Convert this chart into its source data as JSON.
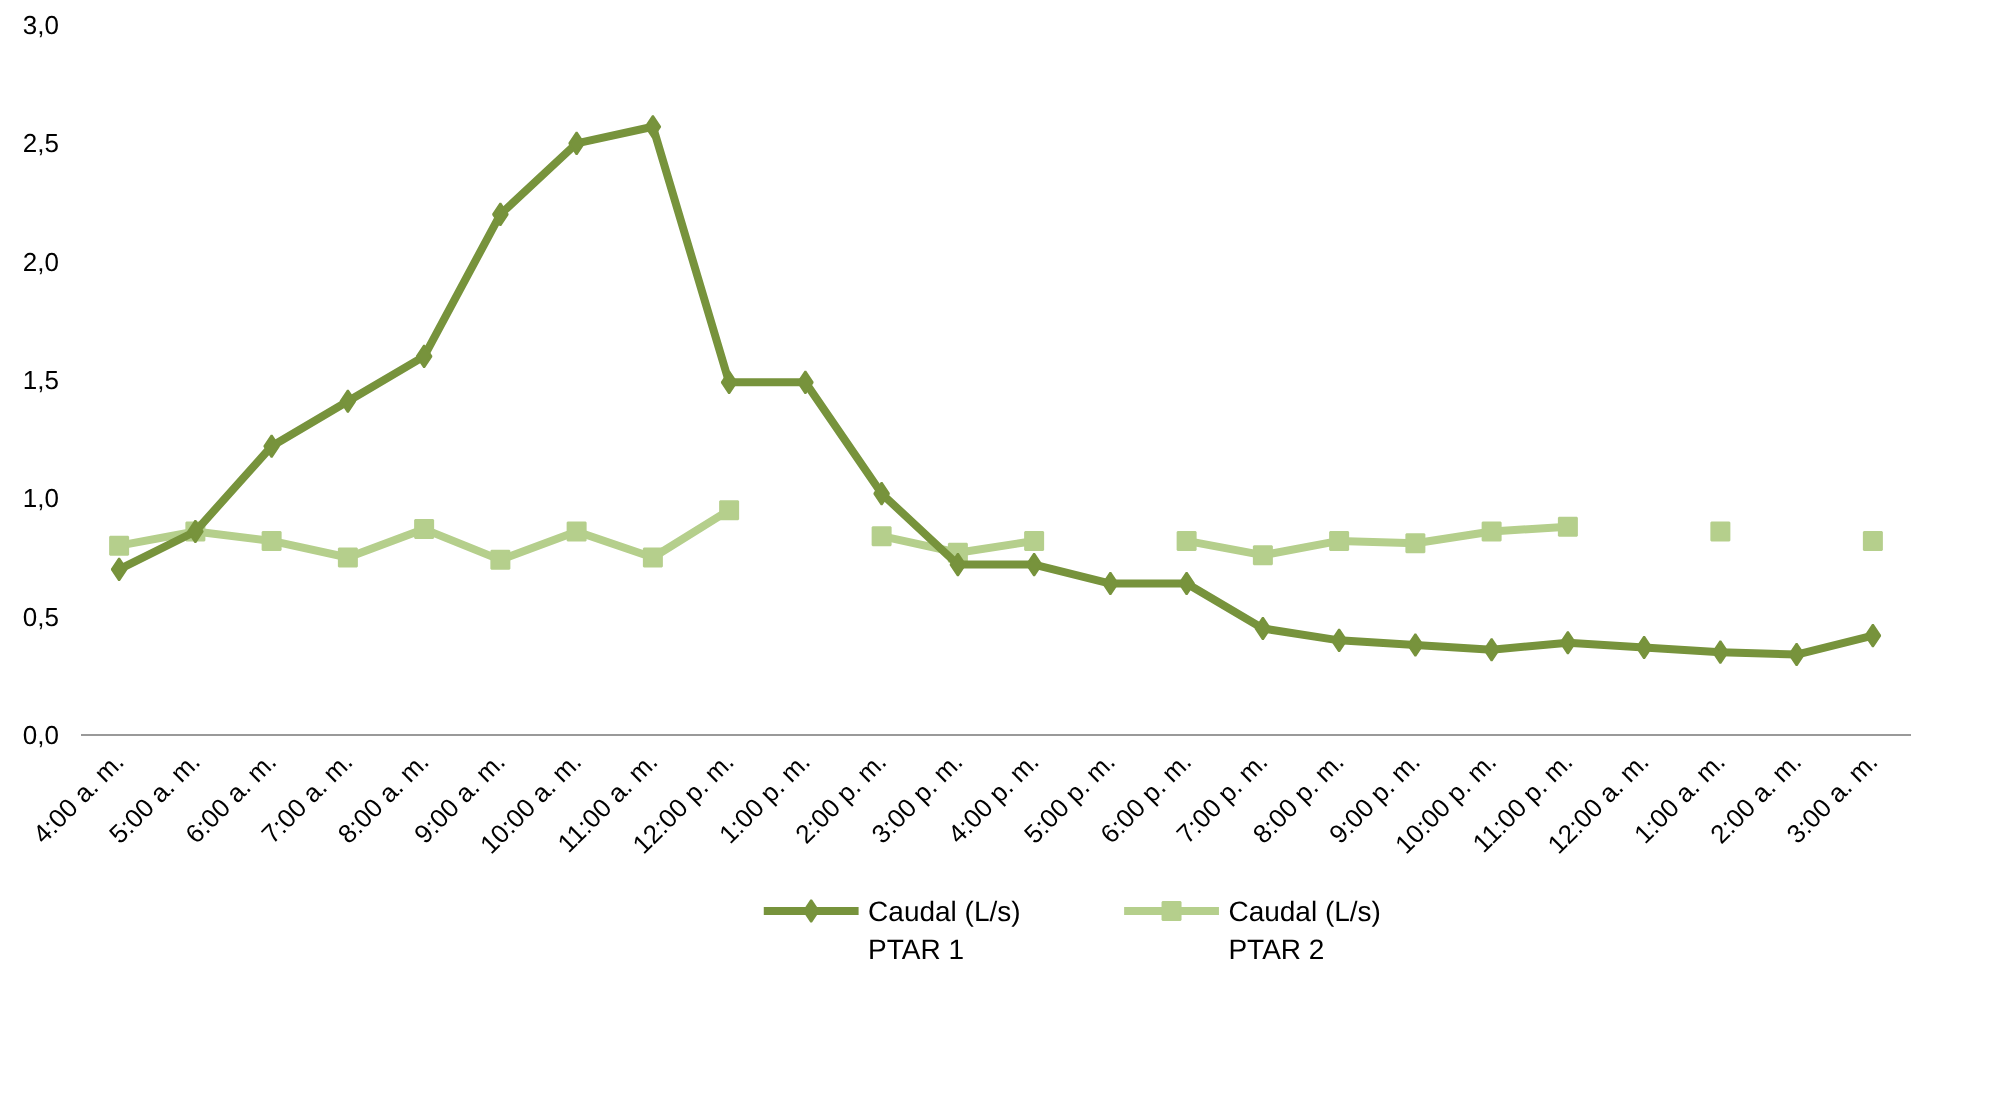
{
  "chart_data": {
    "type": "line",
    "categories": [
      "4:00 a. m.",
      "5:00 a. m.",
      "6:00 a. m.",
      "7:00 a. m.",
      "8:00 a. m.",
      "9:00 a. m.",
      "10:00 a. m.",
      "11:00 a. m.",
      "12:00 p. m.",
      "1:00 p. m.",
      "2:00 p. m.",
      "3:00 p. m.",
      "4:00 p. m.",
      "5:00 p. m.",
      "6:00 p. m.",
      "7:00 p. m.",
      "8:00 p. m.",
      "9:00 p. m.",
      "10:00 p. m.",
      "11:00 p. m.",
      "12:00 a. m.",
      "1:00 a. m.",
      "2:00 a. m.",
      "3:00 a. m."
    ],
    "series": [
      {
        "name": "Caudal (L/s)\nPTAR 1",
        "color": "#77933c",
        "marker": "diamond",
        "values": [
          0.7,
          0.86,
          1.22,
          1.41,
          1.6,
          2.2,
          2.5,
          2.57,
          1.49,
          1.49,
          1.02,
          0.72,
          0.72,
          0.64,
          0.64,
          0.45,
          0.4,
          0.38,
          0.36,
          0.39,
          0.37,
          0.35,
          0.34,
          0.42
        ]
      },
      {
        "name": "Caudal (L/s)\nPTAR 2",
        "color": "#b5cf8c",
        "marker": "square",
        "values": [
          0.8,
          0.86,
          0.82,
          0.75,
          0.87,
          0.74,
          0.86,
          0.75,
          0.95,
          null,
          0.84,
          0.77,
          0.82,
          null,
          0.82,
          0.76,
          0.82,
          0.81,
          0.86,
          0.88,
          null,
          0.86,
          null,
          0.82
        ]
      }
    ],
    "ylim": [
      0,
      3
    ],
    "yticks": [
      {
        "value": 0,
        "label": "0,0"
      },
      {
        "value": 0.5,
        "label": "0,5"
      },
      {
        "value": 1,
        "label": "1,0"
      },
      {
        "value": 1.5,
        "label": "1,5"
      },
      {
        "value": 2,
        "label": "2,0"
      },
      {
        "value": 2.5,
        "label": "2,5"
      },
      {
        "value": 3,
        "label": "3,0"
      }
    ],
    "grid": false,
    "legend": "bottom",
    "line_style": "solid"
  }
}
